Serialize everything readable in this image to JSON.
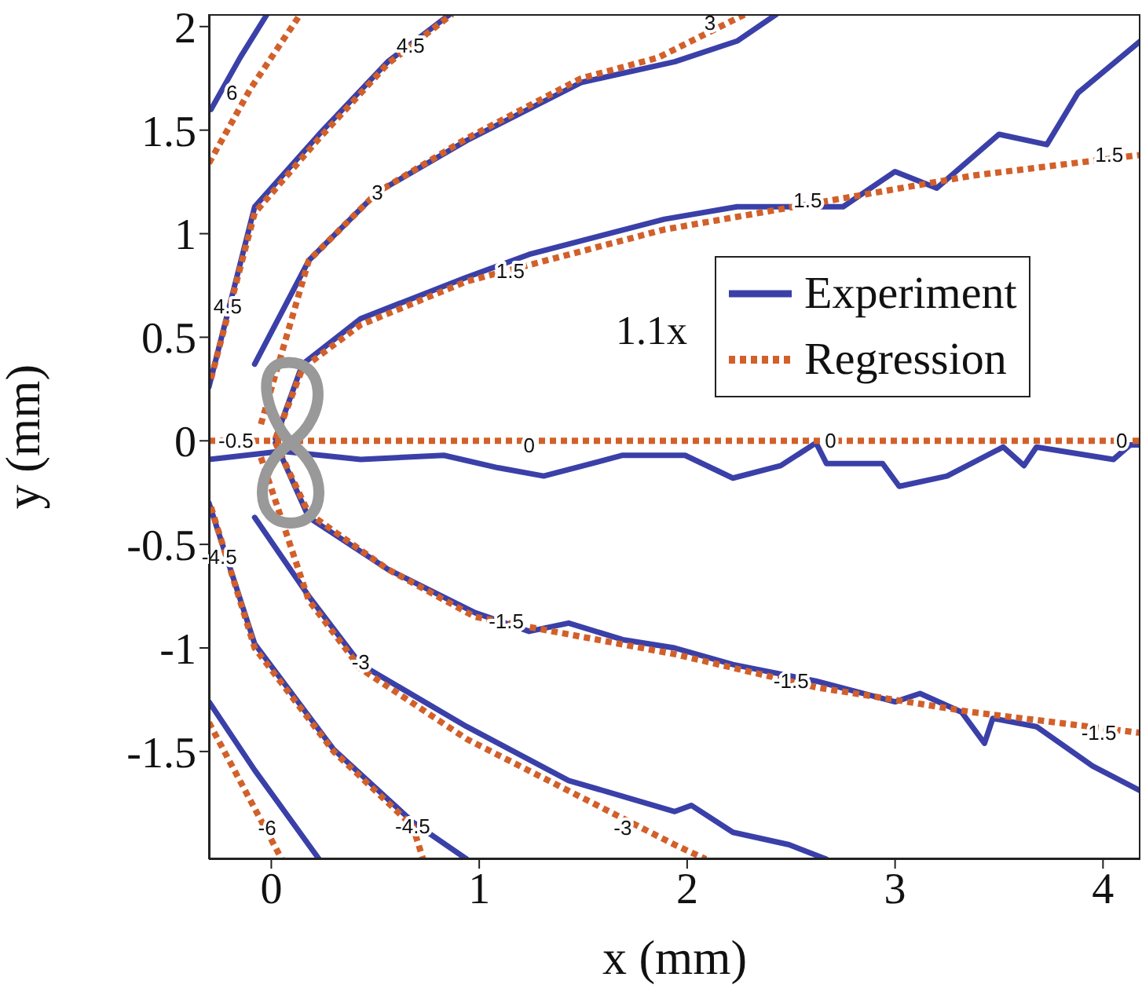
{
  "chart_data": {
    "type": "line",
    "xlabel": "x (mm)",
    "ylabel": "y (mm)",
    "xlim": [
      -0.3,
      4.18
    ],
    "ylim": [
      -2.02,
      2.06
    ],
    "xticks": [
      0,
      1,
      2,
      3,
      4
    ],
    "yticks": [
      -1.5,
      -1,
      -0.5,
      0,
      0.5,
      1,
      1.5,
      2
    ],
    "grid": false,
    "legend": "right",
    "marker": "none",
    "series": [
      {
        "name": "Experiment",
        "color": "#3a40a8",
        "line_style": "solid",
        "x": [
          -0.3,
          0.05,
          0.43,
          0.83,
          1.09,
          1.31,
          1.69,
          1.99,
          2.22,
          2.45,
          2.62,
          2.67,
          2.94,
          3.02,
          3.25,
          3.52,
          3.62,
          3.68,
          4.05,
          4.13,
          4.18
        ],
        "values": [
          -0.09,
          -0.05,
          -0.09,
          -0.07,
          -0.13,
          -0.17,
          -0.07,
          -0.07,
          -0.18,
          -0.12,
          -0.01,
          -0.11,
          -0.11,
          -0.22,
          -0.17,
          -0.03,
          -0.12,
          -0.03,
          -0.09,
          -0.02,
          -0.02
        ]
      },
      {
        "color": "#3a40a8",
        "line_style": "solid",
        "x": [
          0.02,
          0.15,
          0.43,
          0.94,
          1.24,
          1.89,
          2.24,
          2.75,
          3.0,
          3.2,
          3.5,
          3.73,
          3.88,
          4.18
        ],
        "values": [
          0.01,
          0.37,
          0.59,
          0.79,
          0.9,
          1.07,
          1.13,
          1.13,
          1.3,
          1.22,
          1.48,
          1.43,
          1.68,
          1.93
        ]
      },
      {
        "color": "#3a40a8",
        "line_style": "solid",
        "x": [
          -0.08,
          0.18,
          0.51,
          0.94,
          1.49,
          1.94,
          2.24,
          2.43
        ],
        "values": [
          0.37,
          0.87,
          1.2,
          1.45,
          1.73,
          1.83,
          1.93,
          2.06
        ]
      },
      {
        "color": "#3a40a8",
        "line_style": "solid",
        "x": [
          -0.3,
          -0.08,
          0.23,
          0.56,
          0.86
        ],
        "values": [
          0.26,
          1.13,
          1.48,
          1.83,
          2.06
        ]
      },
      {
        "color": "#3a40a8",
        "line_style": "solid",
        "x": [
          -0.29,
          -0.15,
          -0.02
        ],
        "values": [
          1.6,
          1.85,
          2.06
        ]
      },
      {
        "color": "#3a40a8",
        "line_style": "solid",
        "x": [
          0.02,
          0.18,
          0.56,
          0.98,
          1.24,
          1.43,
          1.69,
          1.94,
          2.22,
          2.62,
          3.0,
          3.12,
          3.32,
          3.43,
          3.47,
          3.68,
          3.95,
          4.18
        ],
        "values": [
          -0.01,
          -0.37,
          -0.62,
          -0.83,
          -0.92,
          -0.88,
          -0.96,
          -1.0,
          -1.08,
          -1.16,
          -1.26,
          -1.22,
          -1.31,
          -1.46,
          -1.34,
          -1.38,
          -1.57,
          -1.69
        ]
      },
      {
        "color": "#3a40a8",
        "line_style": "solid",
        "x": [
          -0.08,
          0.18,
          0.43,
          0.94,
          1.43,
          1.94,
          2.02,
          2.22,
          2.49,
          2.67
        ],
        "values": [
          -0.37,
          -0.75,
          -1.08,
          -1.38,
          -1.64,
          -1.79,
          -1.76,
          -1.89,
          -1.95,
          -2.02
        ]
      },
      {
        "color": "#3a40a8",
        "line_style": "solid",
        "x": [
          -0.3,
          -0.08,
          0.3,
          0.68,
          0.94
        ],
        "values": [
          -0.3,
          -0.98,
          -1.49,
          -1.84,
          -2.02
        ]
      },
      {
        "color": "#3a40a8",
        "line_style": "solid",
        "x": [
          -0.3,
          -0.08,
          0.23
        ],
        "values": [
          -1.26,
          -1.59,
          -2.02
        ]
      },
      {
        "name": "Regression",
        "color": "#d2602a",
        "line_style": "dotted",
        "x": [
          -0.3,
          4.18
        ],
        "values": [
          0,
          0
        ]
      },
      {
        "color": "#d2602a",
        "line_style": "dotted",
        "x": [
          0.02,
          0.15,
          0.43,
          0.94,
          1.89,
          3.37,
          4.18
        ],
        "values": [
          0.01,
          0.35,
          0.56,
          0.77,
          1.02,
          1.28,
          1.38
        ]
      },
      {
        "color": "#d2602a",
        "line_style": "dotted",
        "x": [
          -0.05,
          0.18,
          0.51,
          0.94,
          1.49,
          1.86,
          2.28
        ],
        "values": [
          0.08,
          0.87,
          1.2,
          1.46,
          1.75,
          1.85,
          2.06
        ]
      },
      {
        "color": "#d2602a",
        "line_style": "dotted",
        "x": [
          -0.29,
          -0.08,
          0.23,
          0.56,
          0.87
        ],
        "values": [
          0.3,
          1.1,
          1.46,
          1.82,
          2.06
        ]
      },
      {
        "color": "#d2602a",
        "line_style": "dotted",
        "x": [
          -0.3,
          -0.1,
          0.14
        ],
        "values": [
          1.34,
          1.7,
          2.06
        ]
      },
      {
        "color": "#d2602a",
        "line_style": "dotted",
        "x": [
          0.02,
          0.18,
          0.56,
          0.98,
          1.94,
          2.62,
          3.37,
          4.18
        ],
        "values": [
          -0.01,
          -0.35,
          -0.62,
          -0.85,
          -1.03,
          -1.19,
          -1.31,
          -1.41
        ]
      },
      {
        "color": "#d2602a",
        "line_style": "dotted",
        "x": [
          -0.05,
          0.18,
          0.43,
          0.94,
          1.94,
          2.09
        ],
        "values": [
          -0.08,
          -0.77,
          -1.1,
          -1.44,
          -1.95,
          -2.02
        ]
      },
      {
        "color": "#d2602a",
        "line_style": "dotted",
        "x": [
          -0.29,
          -0.08,
          0.3,
          0.68,
          0.73
        ],
        "values": [
          -0.32,
          -1.0,
          -1.5,
          -1.86,
          -2.02
        ]
      },
      {
        "color": "#d2602a",
        "line_style": "dotted",
        "x": [
          -0.3,
          0.05
        ],
        "values": [
          -1.36,
          -2.02
        ]
      }
    ],
    "annotations": [
      "1.1x",
      {
        "text": "6",
        "x": -0.19,
        "y": 1.68
      },
      {
        "text": "4.5",
        "x": 0.67,
        "y": 1.91
      },
      {
        "text": "4.5",
        "x": -0.21,
        "y": 0.65
      },
      {
        "text": "3",
        "x": 0.51,
        "y": 1.2
      },
      {
        "text": "3",
        "x": 2.11,
        "y": 2.02
      },
      {
        "text": "1.5",
        "x": 1.15,
        "y": 0.82
      },
      {
        "text": "1.5",
        "x": 2.58,
        "y": 1.16
      },
      {
        "text": "1.5",
        "x": 4.03,
        "y": 1.38
      },
      {
        "text": "-0.5",
        "x": -0.17,
        "y": 0
      },
      {
        "text": "0",
        "x": 1.24,
        "y": -0.02
      },
      {
        "text": "0",
        "x": 2.69,
        "y": 0
      },
      {
        "text": "0",
        "x": 4.09,
        "y": 0
      },
      {
        "text": "-1.5",
        "x": 1.13,
        "y": -0.87
      },
      {
        "text": "-1.5",
        "x": 2.5,
        "y": -1.16
      },
      {
        "text": "-1.5",
        "x": 3.98,
        "y": -1.41
      },
      {
        "text": "-3",
        "x": 0.43,
        "y": -1.07
      },
      {
        "text": "-3",
        "x": 1.69,
        "y": -1.87
      },
      {
        "text": "-4.5",
        "x": -0.25,
        "y": -0.56
      },
      {
        "text": "-4.5",
        "x": 0.68,
        "y": -1.86
      },
      {
        "text": "-6",
        "x": -0.02,
        "y": -1.87
      }
    ]
  }
}
